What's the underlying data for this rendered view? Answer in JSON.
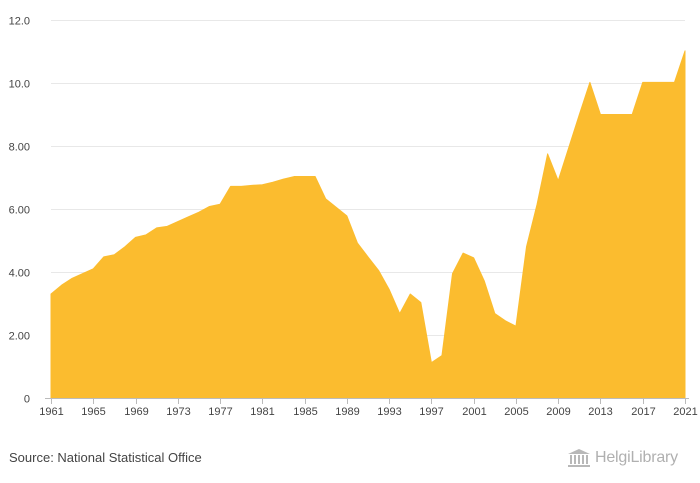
{
  "chart_data": {
    "type": "area",
    "title": "",
    "xlabel": "",
    "ylabel": "",
    "x": [
      1961,
      1962,
      1963,
      1964,
      1965,
      1966,
      1967,
      1968,
      1969,
      1970,
      1971,
      1972,
      1973,
      1974,
      1975,
      1976,
      1977,
      1978,
      1979,
      1980,
      1981,
      1982,
      1983,
      1984,
      1985,
      1986,
      1987,
      1988,
      1989,
      1990,
      1991,
      1992,
      1993,
      1994,
      1995,
      1996,
      1997,
      1998,
      1999,
      2000,
      2001,
      2002,
      2003,
      2004,
      2005,
      2006,
      2007,
      2008,
      2009,
      2010,
      2011,
      2012,
      2013,
      2014,
      2015,
      2016,
      2017,
      2018,
      2019,
      2020,
      2021
    ],
    "values": [
      3.3,
      3.58,
      3.8,
      3.95,
      4.1,
      4.48,
      4.55,
      4.8,
      5.1,
      5.18,
      5.4,
      5.45,
      5.6,
      5.75,
      5.9,
      6.08,
      6.15,
      6.72,
      6.72,
      6.75,
      6.77,
      6.85,
      6.95,
      7.03,
      7.03,
      7.03,
      6.32,
      6.05,
      5.78,
      4.92,
      4.48,
      4.05,
      3.45,
      2.68,
      3.3,
      3.03,
      1.12,
      1.35,
      3.95,
      4.6,
      4.45,
      3.72,
      2.68,
      2.45,
      2.28,
      4.8,
      6.15,
      7.75,
      6.9,
      7.95,
      9.0,
      10.02,
      9.0,
      9.0,
      9.0,
      9.0,
      10.02,
      10.02,
      10.02,
      10.02,
      11.02
    ],
    "x_tick_labels": [
      "1961",
      "1965",
      "1969",
      "1973",
      "1977",
      "1981",
      "1985",
      "1989",
      "1993",
      "1997",
      "2001",
      "2005",
      "2009",
      "2013",
      "2017",
      "2021"
    ],
    "y_tick_labels": [
      "0",
      "2.00",
      "4.00",
      "6.00",
      "8.00",
      "10.0",
      "12.0"
    ],
    "y_ticks": [
      0,
      2,
      4,
      6,
      8,
      10,
      12
    ],
    "ylim": [
      0,
      12
    ],
    "xlim": [
      1961,
      2021
    ],
    "grid": true,
    "fill_color": "#fbbc2f"
  },
  "footer": {
    "source": "Source: National Statistical Office",
    "brand": "HelgiLibrary"
  },
  "colors": {
    "fill": "#fbbc2f",
    "grid": "#e8e8e8",
    "text": "#444444",
    "brand": "#b0b0b0"
  }
}
